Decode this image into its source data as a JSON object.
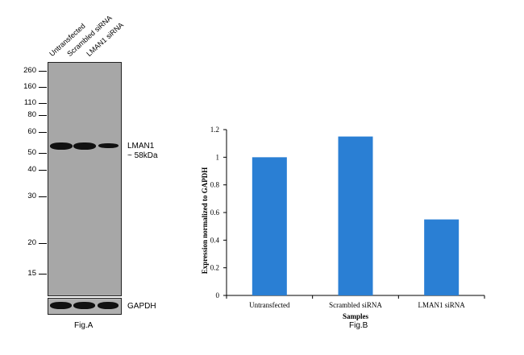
{
  "blot": {
    "lanes": [
      "Untransfected",
      "Scrambled siRNA",
      "LMAN1 siRNA"
    ],
    "mw_markers": [
      "260",
      "160",
      "110",
      "80",
      "60",
      "50",
      "40",
      "30",
      "20",
      "15"
    ],
    "target_label_line1": "LMAN1",
    "target_label_line2": "~ 58kDa",
    "loading_control": "GAPDH",
    "caption": "Fig.A"
  },
  "chart_caption": "Fig.B",
  "chart_data": {
    "type": "bar",
    "categories": [
      "Untransfected",
      "Scrambled siRNA",
      "LMAN1 siRNA"
    ],
    "values": [
      1.0,
      1.15,
      0.55
    ],
    "xlabel": "Samples",
    "ylabel": "Expression normalized to GAPDH",
    "ylim": [
      0,
      1.2
    ],
    "yticks": [
      "0",
      "0.2",
      "0.4",
      "0.6",
      "0.8",
      "1",
      "1.2"
    ],
    "bar_color": "#2a7fd4",
    "grid": false
  }
}
